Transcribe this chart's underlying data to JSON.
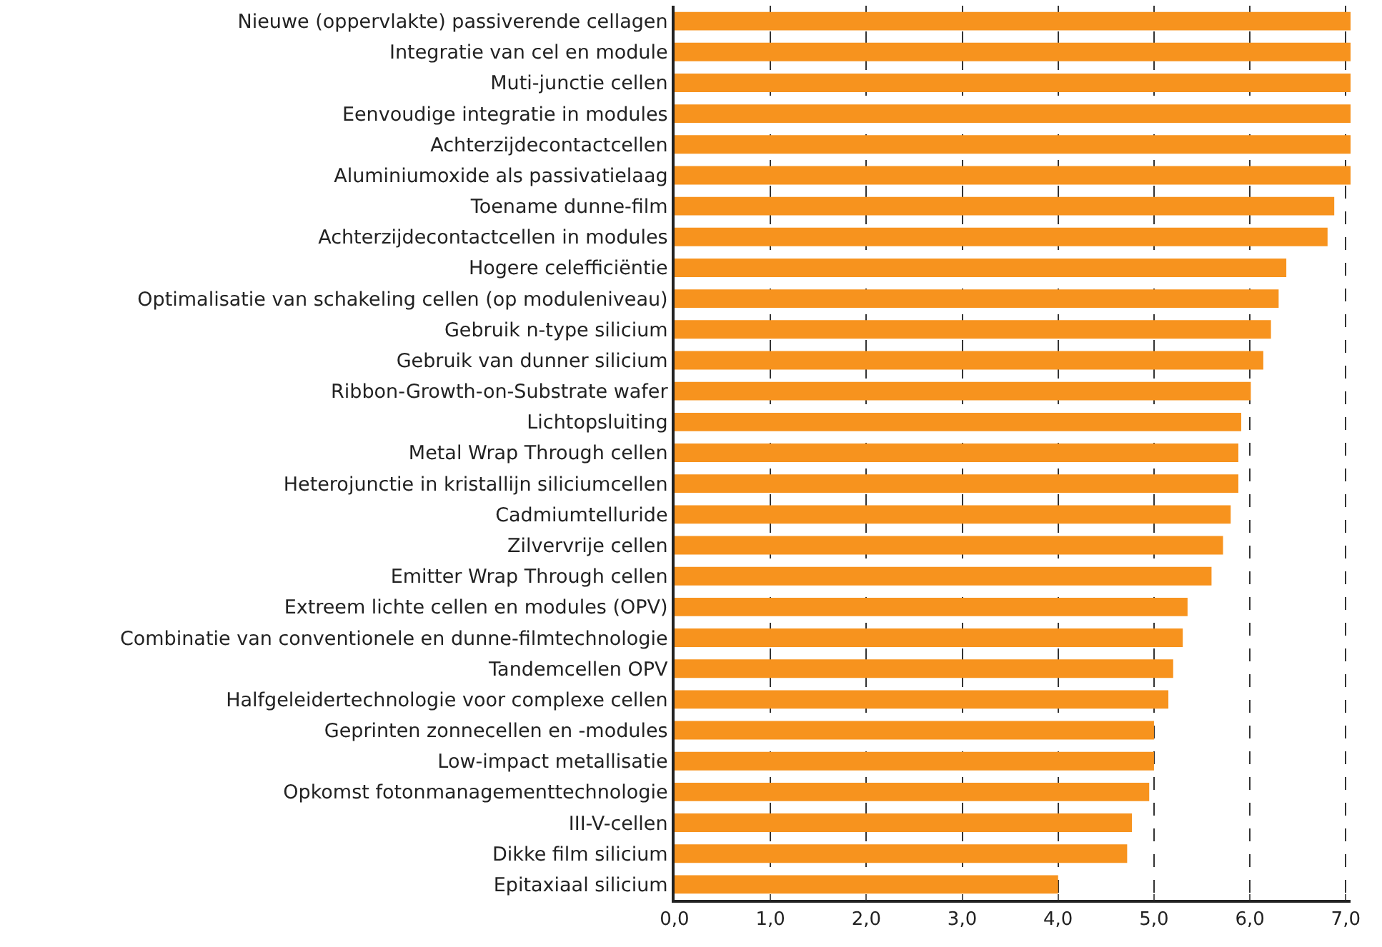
{
  "chart_data": {
    "type": "bar",
    "orientation": "horizontal",
    "color": "#f7931e",
    "categories": [
      "Nieuwe (oppervlakte) passiverende cellagen",
      "Integratie van cel en module",
      "Muti-junctie cellen",
      "Eenvoudige integratie in modules",
      "Achterzijdecontactcellen",
      "Aluminiumoxide als passivatielaag",
      "Toename dunne-film",
      "Achterzijdecontactcellen in modules",
      "Hogere celefficiëntie",
      "Optimalisatie van schakeling cellen (op moduleniveau)",
      "Gebruik n-type silicium",
      "Gebruik van dunner silicium",
      "Ribbon-Growth-on-Substrate wafer",
      "Lichtopsluiting",
      "Metal Wrap Through cellen",
      "Heterojunctie in kristallijn siliciumcellen",
      "Cadmiumtelluride",
      "Zilvervrije cellen",
      "Emitter Wrap Through cellen",
      "Extreem lichte cellen en modules (OPV)",
      "Combinatie van conventionele en dunne-filmtechnologie",
      "Tandemcellen OPV",
      "Halfgeleidertechnologie voor complexe cellen",
      "Geprinten zonnecellen en -modules",
      "Low-impact metallisatie",
      "Opkomst fotonmanagementtechnologie",
      "III-V-cellen",
      "Dikke film silicium",
      "Epitaxiaal silicium"
    ],
    "values": [
      7.05,
      7.05,
      7.05,
      7.05,
      7.05,
      7.05,
      6.88,
      6.81,
      6.38,
      6.3,
      6.22,
      6.14,
      6.01,
      5.91,
      5.88,
      5.88,
      5.8,
      5.72,
      5.6,
      5.35,
      5.3,
      5.2,
      5.15,
      5.0,
      5.0,
      4.95,
      4.77,
      4.72,
      4.0
    ],
    "xlim": [
      0,
      7.05
    ],
    "xticks": [
      {
        "value": 0,
        "label": "0,0"
      },
      {
        "value": 1,
        "label": "1,0"
      },
      {
        "value": 2,
        "label": "2,0"
      },
      {
        "value": 3,
        "label": "3,0"
      },
      {
        "value": 4,
        "label": "4,0"
      },
      {
        "value": 5,
        "label": "5,0"
      },
      {
        "value": 6,
        "label": "6,0"
      },
      {
        "value": 7,
        "label": "7,0"
      }
    ],
    "grid": "x"
  }
}
